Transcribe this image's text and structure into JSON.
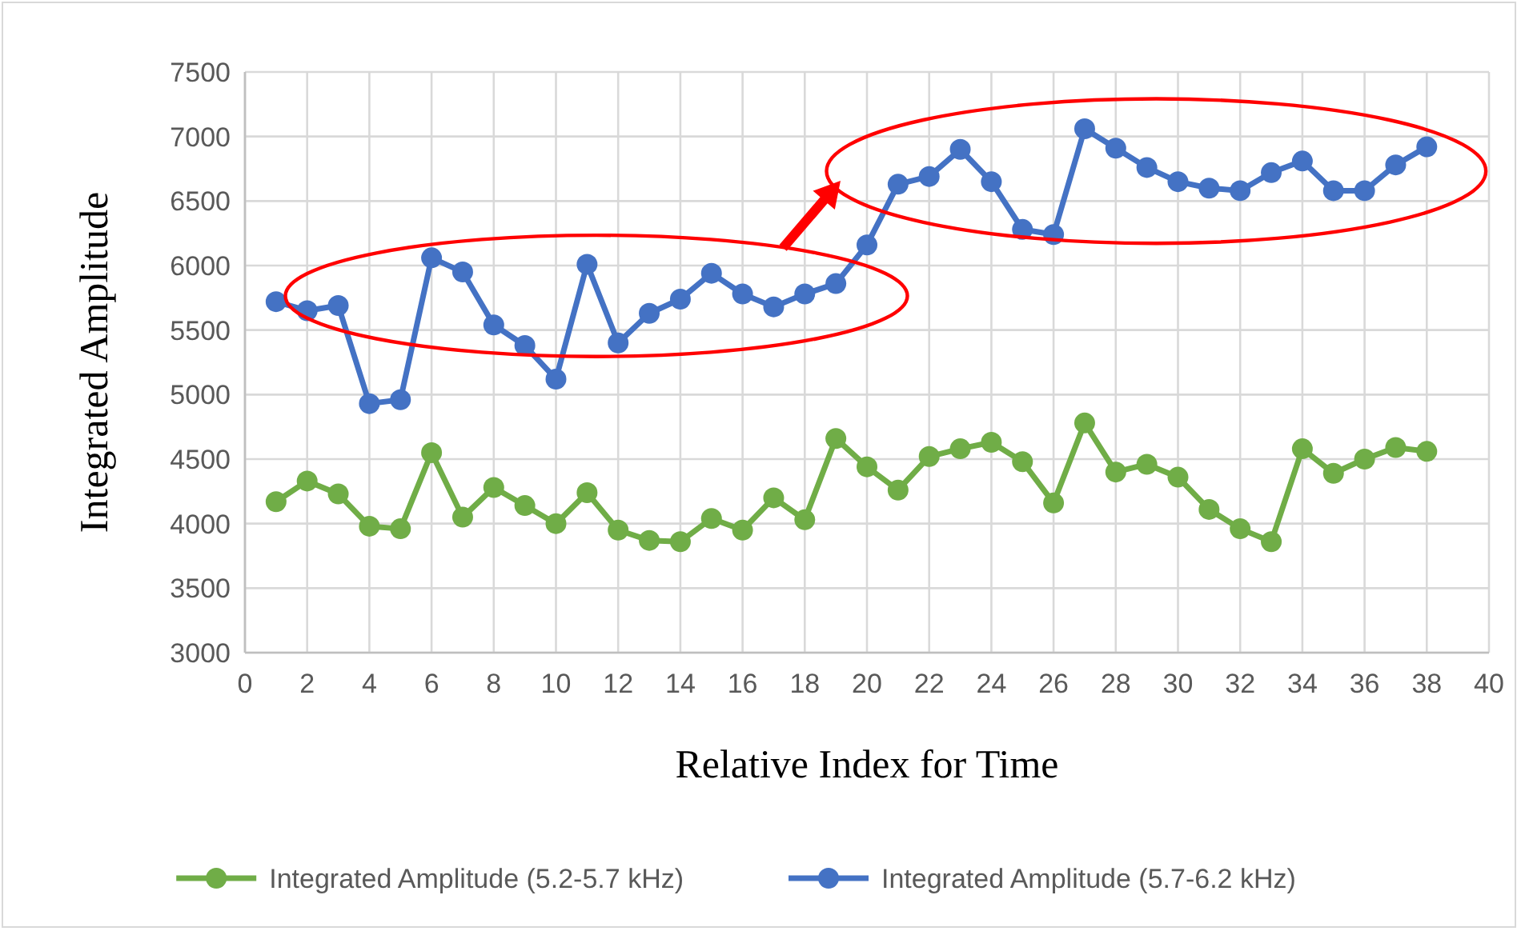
{
  "chart_data": {
    "type": "line",
    "xlabel": "Relative Index for Time",
    "ylabel": "Integrated Amplitude",
    "x": [
      1,
      2,
      3,
      4,
      5,
      6,
      7,
      8,
      9,
      10,
      11,
      12,
      13,
      14,
      15,
      16,
      17,
      18,
      19,
      20,
      21,
      22,
      23,
      24,
      25,
      26,
      27,
      28,
      29,
      30,
      31,
      32,
      33,
      34,
      35,
      36,
      37,
      38
    ],
    "series": [
      {
        "name": "Integrated Amplitude (5.2-5.7 kHz)",
        "color": "#70ad47",
        "values": [
          4170,
          4330,
          4230,
          3980,
          3960,
          4550,
          4050,
          4280,
          4140,
          4000,
          4240,
          3950,
          3870,
          3860,
          4040,
          3950,
          4200,
          4030,
          4660,
          4440,
          4260,
          4520,
          4580,
          4630,
          4480,
          4160,
          4780,
          4400,
          4460,
          4360,
          4110,
          3960,
          3860,
          4580,
          4390,
          4500,
          4590,
          4560
        ]
      },
      {
        "name": "Integrated Amplitude (5.7-6.2 kHz)",
        "color": "#4472c4",
        "values": [
          5720,
          5650,
          5690,
          4930,
          4960,
          6060,
          5950,
          5540,
          5380,
          5120,
          6010,
          5400,
          5630,
          5740,
          5940,
          5780,
          5680,
          5780,
          5860,
          6160,
          6630,
          6690,
          6900,
          6650,
          6280,
          6240,
          7060,
          6910,
          6760,
          6650,
          6600,
          6580,
          6720,
          6810,
          6580,
          6580,
          6780,
          6920
        ]
      }
    ],
    "xlim": [
      0,
      40
    ],
    "xticks": [
      0,
      2,
      4,
      6,
      8,
      10,
      12,
      14,
      16,
      18,
      20,
      22,
      24,
      26,
      28,
      30,
      32,
      34,
      36,
      38,
      40
    ],
    "ylim": [
      3000,
      7500
    ],
    "yticks": [
      3000,
      3500,
      4000,
      4500,
      5000,
      5500,
      6000,
      6500,
      7000,
      7500
    ],
    "grid": true,
    "legend": "bottom",
    "marker": "circle",
    "line_style": "solid"
  }
}
